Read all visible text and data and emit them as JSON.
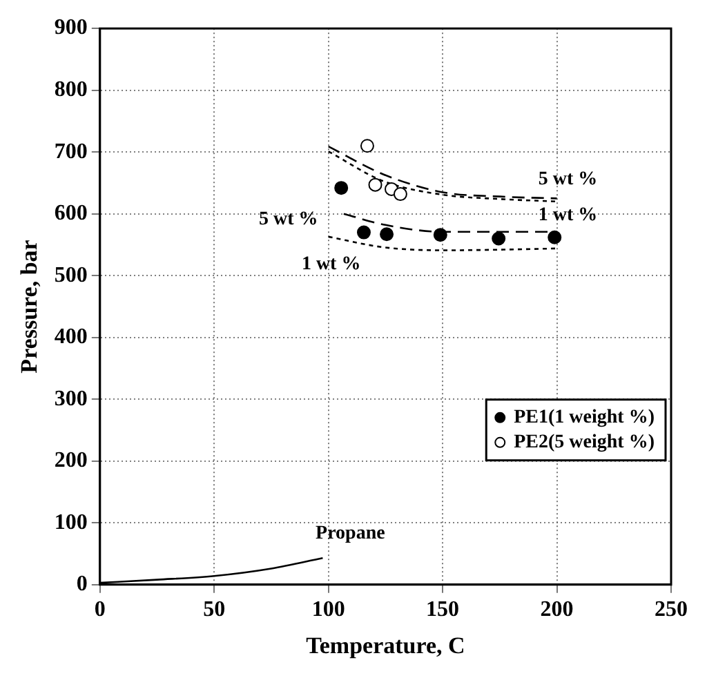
{
  "chart_data": {
    "type": "scatter",
    "xlabel": "Temperature, C",
    "ylabel": "Pressure, bar",
    "xlim": [
      0,
      250
    ],
    "xticks": [
      0,
      50,
      100,
      150,
      200,
      250
    ],
    "ylim": [
      0,
      900
    ],
    "yticks": [
      0,
      100,
      200,
      300,
      400,
      500,
      600,
      700,
      800,
      900
    ],
    "grid": true,
    "legend": "bottom right",
    "series": [
      {
        "name": "PE1(1 weight %)",
        "type": "scatter",
        "marker": "circle",
        "color": "#000000",
        "x": [
          105.6,
          115.5,
          125.5,
          149,
          174.5,
          199
        ],
        "values": [
          642,
          570,
          567,
          566,
          560,
          562
        ]
      },
      {
        "name": "PE2(5 weight %)",
        "type": "scatter",
        "marker": "circle",
        "color": "#ffffff",
        "x": [
          117,
          120.5,
          127.6,
          131.5
        ],
        "values": [
          710,
          647,
          640,
          632
        ]
      },
      {
        "type": "line",
        "line_style": "dashed",
        "color": "#000000",
        "x": [
          100,
          124,
          150,
          175,
          200
        ],
        "values": [
          709,
          664,
          635,
          628,
          625
        ]
      },
      {
        "type": "line",
        "line_style": "dotted",
        "color": "#000000",
        "x": [
          100,
          124,
          150,
          175,
          200
        ],
        "values": [
          701,
          653,
          631,
          624,
          620
        ]
      },
      {
        "type": "line",
        "line_style": "dashed",
        "color": "#000000",
        "x": [
          106.7,
          125,
          150,
          175,
          200
        ],
        "values": [
          600,
          582,
          571,
          571,
          571
        ]
      },
      {
        "type": "line",
        "line_style": "dotted",
        "color": "#000000",
        "x": [
          100,
          124,
          150,
          175,
          200
        ],
        "values": [
          563,
          546,
          541,
          542,
          544
        ]
      },
      {
        "type": "line",
        "line_style": "solid",
        "color": "#000000",
        "x": [
          0,
          25,
          50,
          75,
          97.5
        ],
        "values": [
          3,
          8,
          14,
          26,
          43
        ]
      }
    ],
    "annotations": [
      "5 wt %",
      "1 wt %",
      "5 wt %",
      "1 wt %",
      "Propane"
    ]
  }
}
